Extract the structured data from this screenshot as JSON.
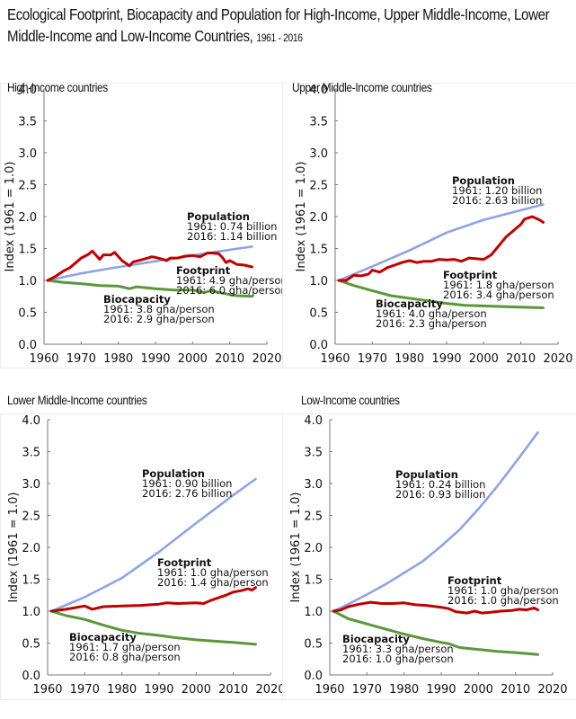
{
  "title": {
    "main": "Ecological Footprint, Biocapacity and Population for High-Income, Upper Middle-Income, Lower Middle-Income and Low-Income Countries,",
    "years": "1961 - 2016"
  },
  "colors": {
    "population": "#8ea3e3",
    "footprint": "#c00000",
    "biocapacity": "#5b973a",
    "axis": "#777777"
  },
  "chart_data": [
    {
      "type": "line",
      "title": "High-Income countries",
      "xlabel": "",
      "ylabel": "Index (1961 = 1.0)",
      "xlim": [
        1960,
        2020
      ],
      "ylim": [
        0,
        4
      ],
      "xticks": [
        "1960",
        "1970",
        "1980",
        "1990",
        "2000",
        "2010",
        "2020"
      ],
      "yticks": [
        "0.0",
        "0.5",
        "1.0",
        "1.5",
        "2.0",
        "2.5",
        "3.0",
        "3.5",
        "4.0"
      ],
      "series": [
        {
          "name": "Population",
          "key": "population",
          "x": [
            1961,
            1970,
            1980,
            1990,
            2000,
            2010,
            2016
          ],
          "values": [
            1.0,
            1.11,
            1.21,
            1.3,
            1.39,
            1.48,
            1.53
          ]
        },
        {
          "name": "Footprint",
          "key": "footprint",
          "x": [
            1961,
            1963,
            1965,
            1967,
            1969,
            1970,
            1972,
            1973,
            1975,
            1976,
            1978,
            1979,
            1981,
            1983,
            1984,
            1986,
            1988,
            1989,
            1990,
            1992,
            1993,
            1994,
            1996,
            1998,
            2000,
            2002,
            2004,
            2005,
            2007,
            2008,
            2009,
            2010,
            2012,
            2014,
            2016
          ],
          "values": [
            1.0,
            1.06,
            1.14,
            1.2,
            1.3,
            1.35,
            1.41,
            1.46,
            1.33,
            1.4,
            1.4,
            1.44,
            1.31,
            1.23,
            1.29,
            1.32,
            1.35,
            1.37,
            1.36,
            1.33,
            1.31,
            1.35,
            1.35,
            1.38,
            1.39,
            1.37,
            1.43,
            1.43,
            1.42,
            1.36,
            1.28,
            1.31,
            1.25,
            1.24,
            1.21
          ]
        },
        {
          "name": "Biocapacity",
          "key": "biocapacity",
          "x": [
            1961,
            1965,
            1970,
            1975,
            1980,
            1983,
            1985,
            1990,
            1995,
            2000,
            2003,
            2005,
            2008,
            2012,
            2016
          ],
          "values": [
            1.0,
            0.97,
            0.95,
            0.92,
            0.91,
            0.87,
            0.9,
            0.87,
            0.85,
            0.85,
            0.81,
            0.84,
            0.8,
            0.76,
            0.75
          ]
        }
      ],
      "annotations": [
        {
          "series": "population",
          "label": "Population",
          "line1": "1961: 0.74 billion",
          "line2": "2016: 1.14 billion"
        },
        {
          "series": "footprint",
          "label": "Footprint",
          "line1": "1961: 4.9 gha/person",
          "line2": "2016: 6.0 gha/person"
        },
        {
          "series": "biocapacity",
          "label": "Biocapacity",
          "line1": "1961: 3.8 gha/person",
          "line2": "2016: 2.9 gha/person"
        }
      ]
    },
    {
      "type": "line",
      "title": "Upper Middle-Income countries",
      "xlabel": "",
      "ylabel": "Index (1961 = 1.0)",
      "xlim": [
        1960,
        2020
      ],
      "ylim": [
        0,
        4
      ],
      "xticks": [
        "1960",
        "1970",
        "1980",
        "1990",
        "2000",
        "2010",
        "2020"
      ],
      "yticks": [
        "0.0",
        "0.5",
        "1.0",
        "1.5",
        "2.0",
        "2.5",
        "3.0",
        "3.5",
        "4.0"
      ],
      "series": [
        {
          "name": "Population",
          "key": "population",
          "x": [
            1961,
            1970,
            1980,
            1990,
            2000,
            2010,
            2016
          ],
          "values": [
            1.0,
            1.22,
            1.47,
            1.75,
            1.95,
            2.1,
            2.19
          ]
        },
        {
          "name": "Footprint",
          "key": "footprint",
          "x": [
            1961,
            1963,
            1965,
            1967,
            1969,
            1970,
            1972,
            1974,
            1976,
            1978,
            1980,
            1982,
            1984,
            1986,
            1988,
            1990,
            1992,
            1994,
            1996,
            1998,
            2000,
            2002,
            2004,
            2006,
            2008,
            2010,
            2011,
            2013,
            2015,
            2016
          ],
          "values": [
            1.0,
            1.0,
            1.08,
            1.07,
            1.1,
            1.16,
            1.13,
            1.2,
            1.24,
            1.28,
            1.31,
            1.28,
            1.3,
            1.3,
            1.33,
            1.32,
            1.33,
            1.3,
            1.35,
            1.34,
            1.33,
            1.4,
            1.54,
            1.68,
            1.78,
            1.88,
            1.96,
            2.0,
            1.95,
            1.91
          ]
        },
        {
          "name": "Biocapacity",
          "key": "biocapacity",
          "x": [
            1961,
            1965,
            1970,
            1975,
            1980,
            1985,
            1990,
            1995,
            2000,
            2005,
            2010,
            2016
          ],
          "values": [
            1.0,
            0.92,
            0.84,
            0.76,
            0.72,
            0.68,
            0.64,
            0.61,
            0.6,
            0.59,
            0.58,
            0.57
          ]
        }
      ],
      "annotations": [
        {
          "series": "population",
          "label": "Population",
          "line1": "1961: 1.20 billion",
          "line2": "2016: 2.63 billion"
        },
        {
          "series": "footprint",
          "label": "Footprint",
          "line1": "1961: 1.8 gha/person",
          "line2": "2016: 3.4 gha/person"
        },
        {
          "series": "biocapacity",
          "label": "Biocapacity",
          "line1": "1961: 4.0 gha/person",
          "line2": "2016: 2.3 gha/person"
        }
      ]
    },
    {
      "type": "line",
      "title": "Lower Middle-Income countries",
      "xlabel": "",
      "ylabel": "Index (1961 = 1.0)",
      "xlim": [
        1960,
        2020
      ],
      "ylim": [
        0,
        4
      ],
      "xticks": [
        "1960",
        "1970",
        "1980",
        "1990",
        "2000",
        "2010",
        "2020"
      ],
      "yticks": [
        "0.0",
        "0.5",
        "1.0",
        "1.5",
        "2.0",
        "2.5",
        "3.0",
        "3.5",
        "4.0"
      ],
      "series": [
        {
          "name": "Population",
          "key": "population",
          "x": [
            1961,
            1970,
            1980,
            1990,
            2000,
            2010,
            2016
          ],
          "values": [
            1.0,
            1.22,
            1.52,
            1.93,
            2.38,
            2.82,
            3.07
          ]
        },
        {
          "name": "Footprint",
          "key": "footprint",
          "x": [
            1961,
            1965,
            1968,
            1970,
            1972,
            1975,
            1980,
            1985,
            1990,
            1992,
            1995,
            2000,
            2002,
            2004,
            2006,
            2008,
            2010,
            2012,
            2014,
            2015,
            2016
          ],
          "values": [
            1.0,
            1.03,
            1.06,
            1.08,
            1.03,
            1.07,
            1.08,
            1.09,
            1.11,
            1.13,
            1.12,
            1.13,
            1.12,
            1.17,
            1.21,
            1.25,
            1.3,
            1.32,
            1.35,
            1.33,
            1.37
          ]
        },
        {
          "name": "Biocapacity",
          "key": "biocapacity",
          "x": [
            1961,
            1965,
            1970,
            1975,
            1980,
            1985,
            1990,
            1995,
            2000,
            2005,
            2010,
            2016
          ],
          "values": [
            1.0,
            0.93,
            0.87,
            0.78,
            0.7,
            0.65,
            0.62,
            0.58,
            0.55,
            0.53,
            0.51,
            0.48
          ]
        }
      ],
      "annotations": [
        {
          "series": "population",
          "label": "Population",
          "line1": "1961: 0.90 billion",
          "line2": "2016: 2.76 billion"
        },
        {
          "series": "footprint",
          "label": "Footprint",
          "line1": "1961: 1.0 gha/person",
          "line2": "2016: 1.4 gha/person"
        },
        {
          "series": "biocapacity",
          "label": "Biocapacity",
          "line1": "1961: 1.7 gha/person",
          "line2": "2016: 0.8 gha/person"
        }
      ]
    },
    {
      "type": "line",
      "title": "Low-Income countries",
      "xlabel": "",
      "ylabel": "Index (1961 = 1.0)",
      "xlim": [
        1960,
        2020
      ],
      "ylim": [
        0,
        4
      ],
      "xticks": [
        "1960",
        "1970",
        "1980",
        "1990",
        "2000",
        "2010",
        "2020"
      ],
      "yticks": [
        "0.0",
        "0.5",
        "1.0",
        "1.5",
        "2.0",
        "2.5",
        "3.0",
        "3.5",
        "4.0"
      ],
      "series": [
        {
          "name": "Population",
          "key": "population",
          "x": [
            1961,
            1965,
            1970,
            1975,
            1980,
            1985,
            1990,
            1995,
            2000,
            2005,
            2010,
            2016
          ],
          "values": [
            1.0,
            1.11,
            1.26,
            1.42,
            1.6,
            1.78,
            2.02,
            2.28,
            2.6,
            2.95,
            3.33,
            3.8
          ]
        },
        {
          "name": "Footprint",
          "key": "footprint",
          "x": [
            1961,
            1963,
            1965,
            1968,
            1971,
            1974,
            1977,
            1980,
            1983,
            1986,
            1990,
            1992,
            1994,
            1997,
            1999,
            2001,
            2003,
            2006,
            2009,
            2011,
            2013,
            2015,
            2016
          ],
          "values": [
            1.0,
            1.02,
            1.07,
            1.11,
            1.14,
            1.12,
            1.12,
            1.13,
            1.1,
            1.09,
            1.06,
            1.04,
            0.99,
            0.97,
            1.0,
            0.97,
            0.98,
            1.0,
            1.01,
            1.03,
            1.02,
            1.05,
            1.02
          ]
        },
        {
          "name": "Biocapacity",
          "key": "biocapacity",
          "x": [
            1961,
            1965,
            1970,
            1975,
            1980,
            1985,
            1990,
            1992,
            1995,
            2000,
            2005,
            2010,
            2016
          ],
          "values": [
            1.0,
            0.88,
            0.8,
            0.72,
            0.64,
            0.57,
            0.51,
            0.49,
            0.43,
            0.4,
            0.37,
            0.35,
            0.32
          ]
        }
      ],
      "annotations": [
        {
          "series": "population",
          "label": "Population",
          "line1": "1961: 0.24 billion",
          "line2": "2016: 0.93 billion"
        },
        {
          "series": "footprint",
          "label": "Footprint",
          "line1": "1961: 1.0 gha/person",
          "line2": "2016: 1.0 gha/person"
        },
        {
          "series": "biocapacity",
          "label": "Biocapacity",
          "line1": "1961: 3.3 gha/person",
          "line2": "2016: 1.0 gha/person"
        }
      ]
    }
  ]
}
